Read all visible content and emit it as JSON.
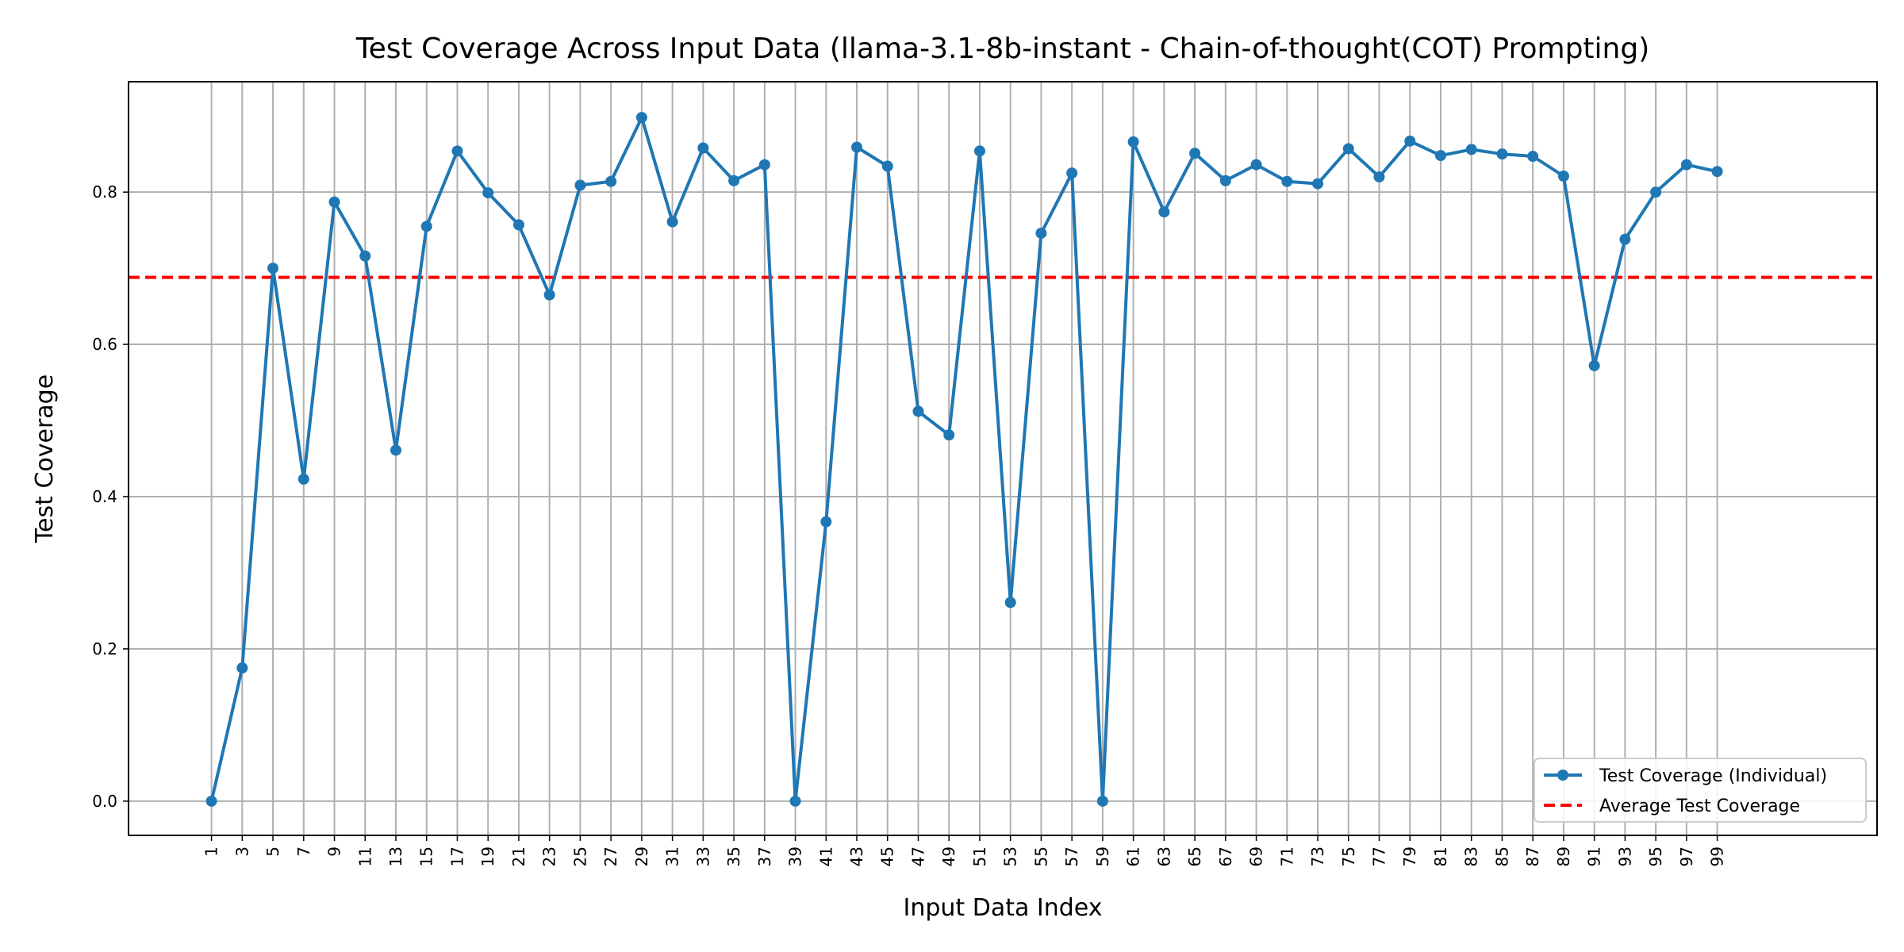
{
  "chart_data": {
    "type": "line",
    "title": "Test Coverage Across Input Data (llama-3.1-8b-instant - Chain-of-thought(COT) Prompting)",
    "xlabel": "Input Data Index",
    "ylabel": "Test Coverage",
    "xlim": [
      -4.4,
      109.4
    ],
    "ylim": [
      -0.045,
      0.945
    ],
    "x_ticks": [
      1,
      3,
      5,
      7,
      9,
      11,
      13,
      15,
      17,
      19,
      21,
      23,
      25,
      27,
      29,
      31,
      33,
      35,
      37,
      39,
      41,
      43,
      45,
      47,
      49,
      51,
      53,
      55,
      57,
      59,
      61,
      63,
      65,
      67,
      69,
      71,
      73,
      75,
      77,
      79,
      81,
      83,
      85,
      87,
      89,
      91,
      93,
      95,
      97,
      99
    ],
    "y_ticks": [
      0.0,
      0.2,
      0.4,
      0.6,
      0.8
    ],
    "grid": true,
    "legend_position": "lower-right",
    "series": [
      {
        "name": "Test Coverage (Individual)",
        "color": "#1f77b4",
        "marker": "circle",
        "x": [
          1,
          3,
          5,
          7,
          9,
          11,
          13,
          15,
          17,
          19,
          21,
          23,
          25,
          27,
          29,
          31,
          33,
          35,
          37,
          39,
          41,
          43,
          45,
          47,
          49,
          51,
          53,
          55,
          57,
          59,
          61,
          63,
          65,
          67,
          69,
          71,
          73,
          75,
          77,
          79,
          81,
          83,
          85,
          87,
          89,
          91,
          93,
          95,
          97,
          99
        ],
        "values": [
          0.0,
          0.175,
          0.7,
          0.423,
          0.787,
          0.716,
          0.461,
          0.755,
          0.854,
          0.799,
          0.757,
          0.665,
          0.809,
          0.814,
          0.898,
          0.761,
          0.858,
          0.815,
          0.836,
          0.0,
          0.367,
          0.859,
          0.834,
          0.512,
          0.481,
          0.854,
          0.261,
          0.746,
          0.825,
          0.0,
          0.866,
          0.774,
          0.851,
          0.815,
          0.836,
          0.814,
          0.811,
          0.857,
          0.82,
          0.867,
          0.848,
          0.856,
          0.85,
          0.847,
          0.821,
          0.572,
          0.738,
          0.8,
          0.836,
          0.827
        ]
      },
      {
        "name": "Average Test Coverage",
        "color": "#ff0000",
        "style": "dashed",
        "value": 0.688
      }
    ]
  }
}
